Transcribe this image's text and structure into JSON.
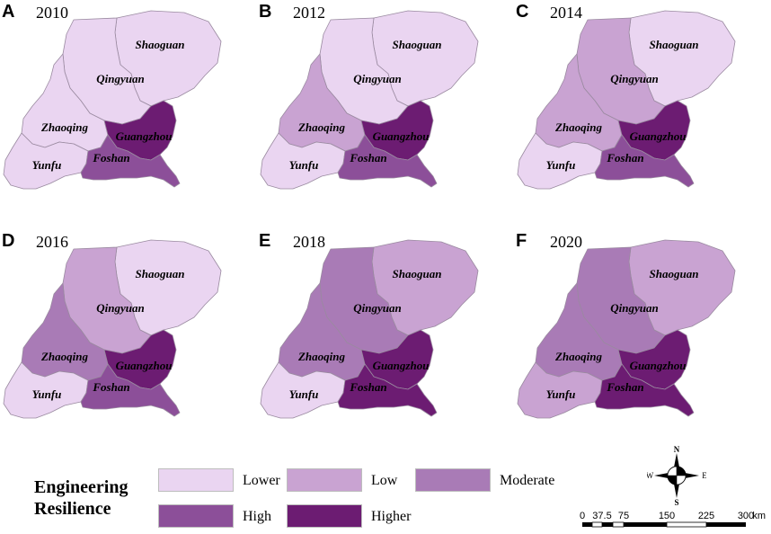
{
  "legend": {
    "title_line1": "Engineering",
    "title_line2": "Resilience",
    "classes": [
      {
        "key": "lower",
        "label": "Lower",
        "color": "#ead5f1"
      },
      {
        "key": "low",
        "label": "Low",
        "color": "#c9a3d2"
      },
      {
        "key": "moderate",
        "label": "Moderate",
        "color": "#a97bb6"
      },
      {
        "key": "high",
        "label": "High",
        "color": "#8c4f99"
      },
      {
        "key": "higher",
        "label": "Higher",
        "color": "#6c1c72"
      }
    ]
  },
  "cities": [
    "Shaoguan",
    "Qingyuan",
    "Zhaoqing",
    "Guangzhou",
    "Yunfu",
    "Foshan"
  ],
  "panels": [
    {
      "letter": "A",
      "year": "2010",
      "classes": {
        "Shaoguan": "lower",
        "Qingyuan": "lower",
        "Zhaoqing": "lower",
        "Guangzhou": "higher",
        "Yunfu": "lower",
        "Foshan": "high"
      }
    },
    {
      "letter": "B",
      "year": "2012",
      "classes": {
        "Shaoguan": "lower",
        "Qingyuan": "lower",
        "Zhaoqing": "low",
        "Guangzhou": "higher",
        "Yunfu": "lower",
        "Foshan": "high"
      }
    },
    {
      "letter": "C",
      "year": "2014",
      "classes": {
        "Shaoguan": "lower",
        "Qingyuan": "low",
        "Zhaoqing": "low",
        "Guangzhou": "higher",
        "Yunfu": "lower",
        "Foshan": "high"
      }
    },
    {
      "letter": "D",
      "year": "2016",
      "classes": {
        "Shaoguan": "lower",
        "Qingyuan": "low",
        "Zhaoqing": "moderate",
        "Guangzhou": "higher",
        "Yunfu": "lower",
        "Foshan": "high"
      }
    },
    {
      "letter": "E",
      "year": "2018",
      "classes": {
        "Shaoguan": "low",
        "Qingyuan": "moderate",
        "Zhaoqing": "moderate",
        "Guangzhou": "higher",
        "Yunfu": "lower",
        "Foshan": "higher"
      }
    },
    {
      "letter": "F",
      "year": "2020",
      "classes": {
        "Shaoguan": "low",
        "Qingyuan": "moderate",
        "Zhaoqing": "moderate",
        "Guangzhou": "higher",
        "Yunfu": "low",
        "Foshan": "higher"
      }
    }
  ],
  "compass": {
    "n": "N",
    "s": "S",
    "e": "E",
    "w": "W"
  },
  "scale_bar": {
    "ticks": [
      "0",
      "37.5",
      "75",
      "150",
      "225",
      "300"
    ],
    "unit": "km"
  }
}
